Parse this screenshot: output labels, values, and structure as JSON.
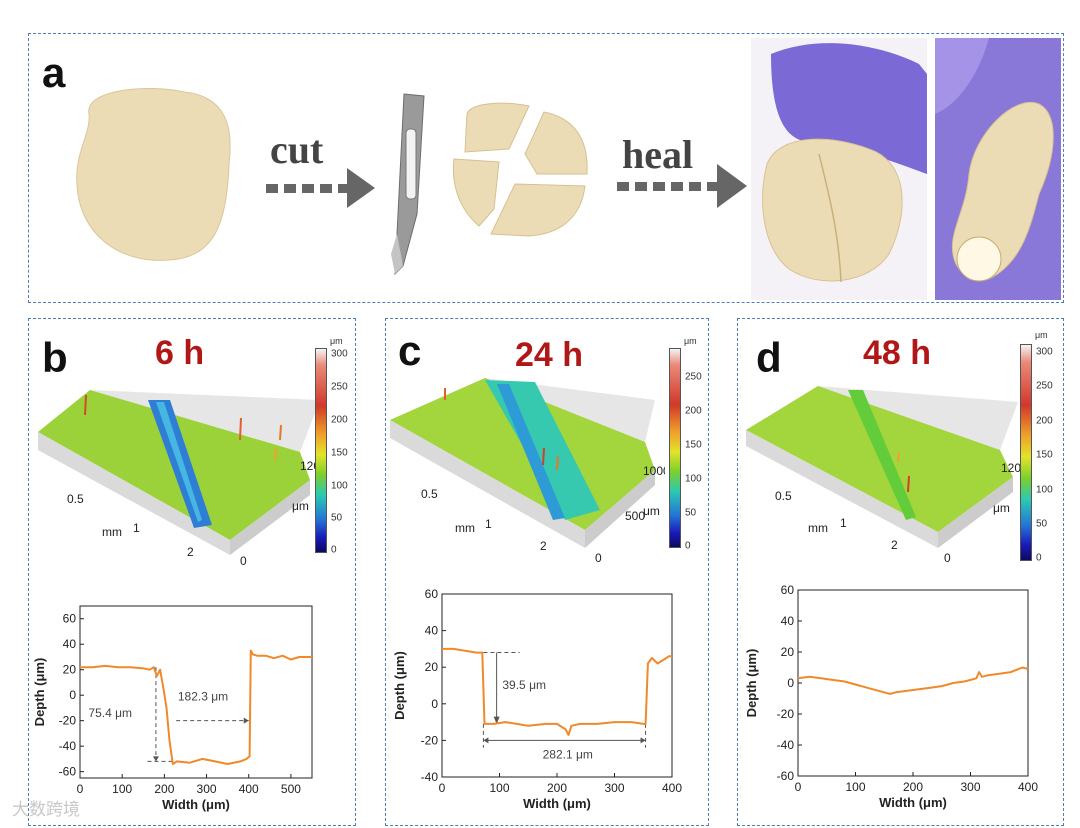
{
  "panel_a": {
    "label": "a",
    "step_cut": "cut",
    "step_heal": "heal"
  },
  "panels": [
    {
      "label": "b",
      "time": "6 h"
    },
    {
      "label": "c",
      "time": "24 h"
    },
    {
      "label": "d",
      "time": "48 h"
    }
  ],
  "scale_bars": [
    {
      "unit": "μm",
      "ticks": [
        "300",
        "250",
        "200",
        "150",
        "100",
        "50",
        "0"
      ]
    },
    {
      "unit": "μm",
      "ticks": [
        "250",
        "200",
        "150",
        "100",
        "50",
        "0"
      ]
    },
    {
      "unit": "μm",
      "ticks": [
        "300",
        "250",
        "200",
        "150",
        "100",
        "50",
        "0"
      ]
    }
  ],
  "surface_axes": [
    {
      "x_unit": "mm",
      "x_ticks": [
        "0.5",
        "1",
        "2"
      ],
      "y_unit": "μm",
      "y_ticks": [
        "0",
        "120"
      ]
    },
    {
      "x_unit": "mm",
      "x_ticks": [
        "0.5",
        "1",
        "2"
      ],
      "y_unit": "μm",
      "y_ticks": [
        "0",
        "500",
        "1000"
      ]
    },
    {
      "x_unit": "mm",
      "x_ticks": [
        "0.5",
        "1",
        "2"
      ],
      "y_unit": "μm",
      "y_ticks": [
        "0",
        "120"
      ]
    }
  ],
  "chart_data": [
    {
      "type": "line",
      "xlabel": "Width (μm)",
      "ylabel": "Depth (μm)",
      "xlim": [
        0,
        550
      ],
      "ylim": [
        -65,
        70
      ],
      "xticks": [
        0,
        100,
        200,
        300,
        400,
        500
      ],
      "yticks": [
        -60,
        -40,
        -20,
        0,
        20,
        40,
        60
      ],
      "color": "#f0892a",
      "series": [
        {
          "x": [
            0,
            30,
            60,
            90,
            120,
            150,
            165,
            175,
            182,
            190,
            198,
            205,
            212,
            220,
            230,
            260,
            290,
            320,
            350,
            380,
            395,
            402,
            405,
            410,
            420,
            440,
            460,
            480,
            500,
            520,
            540,
            550
          ],
          "y": [
            22,
            22,
            23,
            22,
            22,
            21,
            20,
            22,
            15,
            20,
            5,
            -10,
            -35,
            -54,
            -52,
            -53,
            -50,
            -52,
            -54,
            -52,
            -50,
            -48,
            35,
            32,
            31,
            31,
            29,
            31,
            28,
            30,
            30,
            30
          ]
        }
      ],
      "annotations": [
        "75.4 μm",
        "182.3 μm"
      ]
    },
    {
      "type": "line",
      "xlabel": "Width (μm)",
      "ylabel": "Depth (μm)",
      "xlim": [
        0,
        400
      ],
      "ylim": [
        -40,
        60
      ],
      "xticks": [
        0,
        100,
        200,
        300,
        400
      ],
      "yticks": [
        -40,
        -20,
        0,
        20,
        40,
        60
      ],
      "color": "#f0892a",
      "series": [
        {
          "x": [
            0,
            20,
            40,
            60,
            70,
            74,
            90,
            110,
            130,
            150,
            180,
            200,
            215,
            220,
            225,
            240,
            270,
            300,
            330,
            350,
            354,
            358,
            365,
            375,
            385,
            395,
            400
          ],
          "y": [
            30,
            30,
            29,
            28,
            28,
            -11,
            -11,
            -10,
            -11,
            -12,
            -11,
            -11,
            -14,
            -17,
            -12,
            -11,
            -11,
            -10,
            -10,
            -11,
            -11,
            22,
            25,
            22,
            24,
            26,
            26
          ]
        }
      ],
      "annotations": [
        "39.5 μm",
        "282.1 μm"
      ]
    },
    {
      "type": "line",
      "xlabel": "Width (μm)",
      "ylabel": "Depth (μm)",
      "xlim": [
        0,
        400
      ],
      "ylim": [
        -60,
        60
      ],
      "xticks": [
        0,
        100,
        200,
        300,
        400
      ],
      "yticks": [
        -60,
        -40,
        -20,
        0,
        20,
        40,
        60
      ],
      "color": "#f0892a",
      "series": [
        {
          "x": [
            0,
            20,
            40,
            60,
            80,
            100,
            120,
            140,
            160,
            170,
            190,
            210,
            230,
            250,
            270,
            290,
            300,
            310,
            315,
            320,
            330,
            350,
            370,
            390,
            400
          ],
          "y": [
            3,
            4,
            3,
            2,
            1,
            -1,
            -3,
            -5,
            -7,
            -6,
            -5,
            -4,
            -3,
            -2,
            0,
            1,
            2,
            3,
            7,
            4,
            5,
            6,
            7,
            10,
            9
          ]
        }
      ],
      "annotations": []
    }
  ],
  "watermark": "大数跨境"
}
